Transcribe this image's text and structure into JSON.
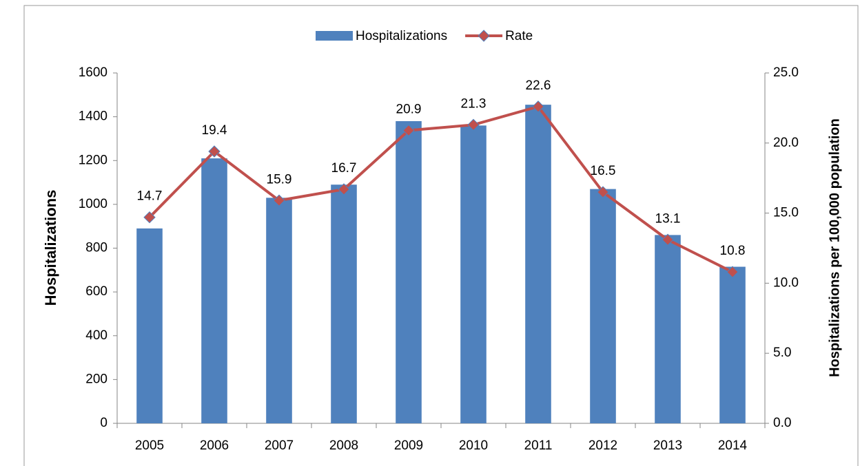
{
  "chart_data": {
    "type": "bar",
    "categories": [
      "2005",
      "2006",
      "2007",
      "2008",
      "2009",
      "2010",
      "2011",
      "2012",
      "2013",
      "2014"
    ],
    "series": [
      {
        "name": "Hospitalizations",
        "type": "bar",
        "color": "#4f81bd",
        "values": [
          890,
          1210,
          1030,
          1090,
          1380,
          1360,
          1455,
          1070,
          860,
          715
        ]
      },
      {
        "name": "Rate",
        "type": "line",
        "axis": "y2",
        "color": "#c0504d",
        "values": [
          14.7,
          19.4,
          15.9,
          16.7,
          20.9,
          21.3,
          22.6,
          16.5,
          13.1,
          10.8
        ]
      }
    ],
    "y_label": "Hospitalizations",
    "y2_label": "Hospitalizations per 100,000 population",
    "ylim": [
      0,
      1600
    ],
    "yticks": [
      0,
      200,
      400,
      600,
      800,
      1000,
      1200,
      1400,
      1600
    ],
    "y2lim": [
      0,
      25
    ],
    "y2ticks": [
      {
        "value": 0,
        "label": "0.0"
      },
      {
        "value": 5,
        "label": "5.0"
      },
      {
        "value": 10,
        "label": "10.0"
      },
      {
        "value": 15,
        "label": "15.0"
      },
      {
        "value": 20,
        "label": "20.0"
      },
      {
        "value": 25,
        "label": "25.0"
      }
    ],
    "legend": "top",
    "grid": false
  }
}
